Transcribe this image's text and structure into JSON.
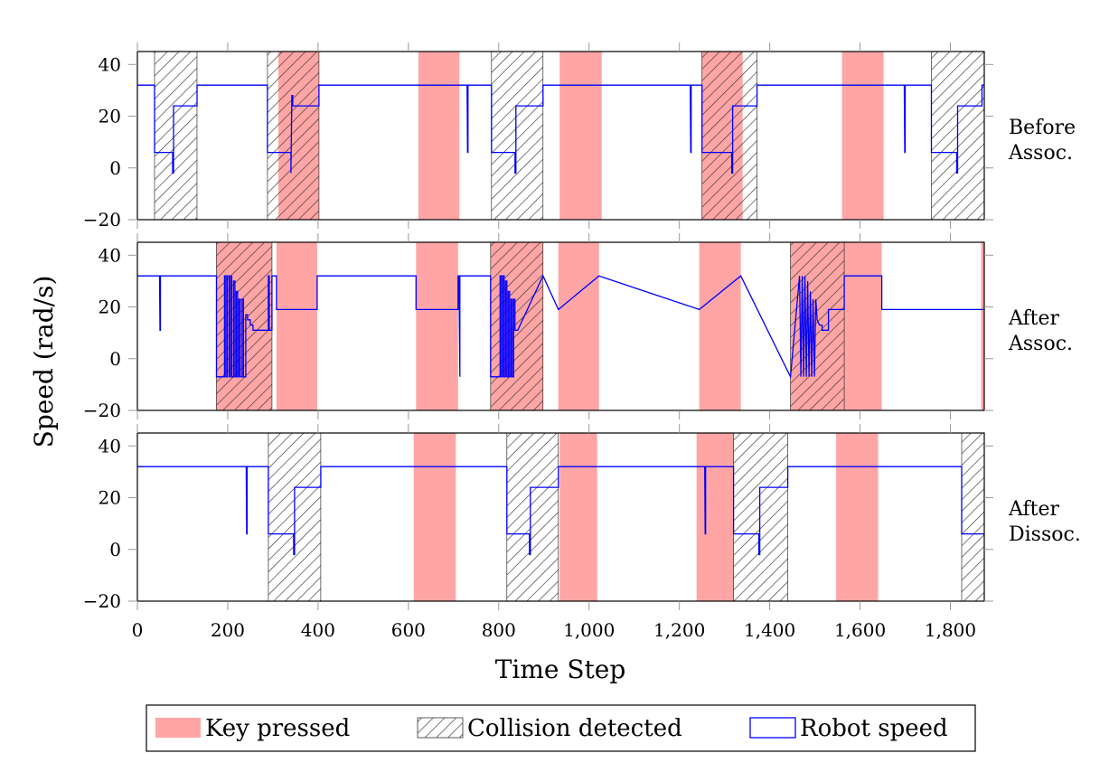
{
  "chart_data": {
    "type": "line",
    "xlabel": "Time Step",
    "ylabel": "Speed (rad/s)",
    "xlim": [
      0,
      1875
    ],
    "ylim": [
      -20,
      45
    ],
    "xticks": [
      0,
      200,
      400,
      600,
      800,
      1000,
      1200,
      1400,
      1600,
      1800
    ],
    "xtick_labels": [
      "0",
      "200",
      "400",
      "600",
      "800",
      "1,000",
      "1,200",
      "1,400",
      "1,600",
      "1,800"
    ],
    "yticks": [
      -20,
      0,
      20,
      40
    ],
    "ytick_labels": [
      "−20",
      "0",
      "20",
      "40"
    ],
    "grid": false,
    "legend_position": "bottom",
    "legend": [
      {
        "label": "Key pressed",
        "kind": "key",
        "color": "#ffa5a5"
      },
      {
        "label": "Collision detected",
        "kind": "collision",
        "color": "#333333"
      },
      {
        "label": "Robot speed",
        "kind": "speed",
        "color": "#0000ff"
      }
    ],
    "panels": [
      {
        "label_lines": [
          "Before",
          "Assoc."
        ],
        "key_pressed": [
          [
            312,
            402
          ],
          [
            622,
            713
          ],
          [
            935,
            1028
          ],
          [
            1250,
            1340
          ],
          [
            1560,
            1652
          ]
        ],
        "collision": [
          [
            38,
            132
          ],
          [
            288,
            402
          ],
          [
            784,
            898
          ],
          [
            1250,
            1372
          ],
          [
            1758,
            1875
          ]
        ],
        "series": [
          {
            "name": "Robot speed",
            "x": [
              0,
              38,
              38,
              78,
              78,
              80,
              80,
              132,
              132,
              288,
              288,
              340,
              340,
              342,
              344,
              344,
              402,
              402,
              730,
              731,
              732,
              732,
              784,
              784,
              836,
              836,
              838,
              838,
              898,
              898,
              1224,
              1225,
              1226,
              1226,
              1250,
              1250,
              1316,
              1316,
              1318,
              1318,
              1372,
              1372,
              1698,
              1699,
              1700,
              1700,
              1758,
              1758,
              1814,
              1814,
              1816,
              1816,
              1870,
              1870,
              1875
            ],
            "y": [
              32,
              32,
              6,
              6,
              -2,
              -2,
              24,
              24,
              32,
              32,
              6,
              6,
              -2,
              28,
              28,
              24,
              24,
              32,
              32,
              6,
              6,
              32,
              32,
              6,
              6,
              -2,
              -2,
              24,
              24,
              32,
              32,
              6,
              6,
              32,
              32,
              6,
              6,
              -2,
              -2,
              24,
              24,
              32,
              32,
              6,
              6,
              32,
              32,
              6,
              6,
              -2,
              -2,
              24,
              24,
              32,
              32
            ]
          }
        ]
      },
      {
        "label_lines": [
          "After",
          "Assoc."
        ],
        "key_pressed": [
          [
            175,
            298
          ],
          [
            308,
            398
          ],
          [
            617,
            710
          ],
          [
            782,
            898
          ],
          [
            932,
            1022
          ],
          [
            1244,
            1336
          ],
          [
            1446,
            1648
          ],
          [
            1868,
            1875
          ]
        ],
        "collision": [
          [
            175,
            298
          ],
          [
            782,
            898
          ],
          [
            1446,
            1565
          ]
        ],
        "series": [
          {
            "name": "Robot speed",
            "x": [
              0,
              49,
              50,
              51,
              51,
              175,
              175,
              193,
              193,
              196,
              196,
              199,
              199,
              203,
              203,
              206,
              206,
              209,
              209,
              213,
              213,
              216,
              216,
              219,
              219,
              222,
              222,
              225,
              225,
              228,
              228,
              232,
              232,
              235,
              235,
              240,
              240,
              244,
              244,
              250,
              250,
              256,
              256,
              290,
              290,
              292,
              292,
              298,
              298,
              308,
              308,
              398,
              398,
              617,
              617,
              710,
              710,
              712,
              714,
              714,
              782,
              782,
              803,
              803,
              806,
              806,
              809,
              809,
              812,
              812,
              815,
              815,
              818,
              818,
              821,
              821,
              824,
              824,
              827,
              827,
              830,
              830,
              833,
              833,
              836,
              836,
              842,
              842,
              898,
              898,
              932,
              932,
              1022,
              1022,
              1244,
              1244,
              1336,
              1336,
              1446,
              1446,
              1466,
              1466,
              1469,
              1469,
              1472,
              1472,
              1475,
              1475,
              1478,
              1478,
              1481,
              1481,
              1484,
              1484,
              1487,
              1487,
              1490,
              1490,
              1493,
              1493,
              1496,
              1496,
              1499,
              1499,
              1502,
              1502,
              1505,
              1505,
              1510,
              1510,
              1516,
              1516,
              1522,
              1522,
              1530,
              1530,
              1565,
              1565,
              1648,
              1648,
              1870,
              1870,
              1875
            ],
            "y": [
              32,
              32,
              11,
              11,
              32,
              32,
              -7,
              -7,
              32,
              32,
              -7,
              -7,
              32,
              32,
              -7,
              -7,
              32,
              32,
              -7,
              -7,
              30,
              30,
              -7,
              -7,
              26,
              26,
              -7,
              -7,
              23,
              23,
              -7,
              -7,
              23,
              23,
              -7,
              -7,
              17,
              17,
              15,
              15,
              13,
              13,
              11,
              11,
              32,
              32,
              11,
              11,
              32,
              32,
              19,
              19,
              32,
              32,
              19,
              19,
              32,
              32,
              -7,
              32,
              32,
              -7,
              -7,
              32,
              32,
              -7,
              -7,
              32,
              32,
              -7,
              -7,
              30,
              30,
              -7,
              -7,
              26,
              26,
              -7,
              -7,
              23,
              23,
              -7,
              -7,
              23,
              23,
              11,
              11,
              11,
              32,
              32,
              19,
              19,
              32,
              32,
              19,
              19,
              32,
              32,
              -7,
              -7,
              32,
              32,
              -7,
              -7,
              32,
              32,
              -7,
              -7,
              32,
              32,
              -7,
              -7,
              30,
              30,
              -7,
              -7,
              26,
              26,
              -7,
              -7,
              23,
              23,
              -7,
              -7,
              23,
              23,
              15,
              15,
              13,
              13,
              13,
              11,
              11,
              11,
              11,
              19,
              19,
              32,
              32,
              19,
              19,
              19,
              19
            ]
          }
        ]
      },
      {
        "label_lines": [
          "After",
          "Dissoc."
        ],
        "key_pressed": [
          [
            612,
            705
          ],
          [
            935,
            1018
          ],
          [
            1238,
            1320
          ],
          [
            1547,
            1640
          ]
        ],
        "collision": [
          [
            290,
            406
          ],
          [
            818,
            932
          ],
          [
            1320,
            1440
          ],
          [
            1825,
            1875
          ]
        ],
        "series": [
          {
            "name": "Robot speed",
            "x": [
              0,
              241,
              242,
              243,
              243,
              290,
              290,
              346,
              346,
              348,
              348,
              406,
              406,
              818,
              818,
              868,
              868,
              870,
              870,
              932,
              932,
              1256,
              1257,
              1258,
              1258,
              1320,
              1320,
              1376,
              1376,
              1378,
              1378,
              1440,
              1440,
              1825,
              1825,
              1875
            ],
            "y": [
              32,
              32,
              6,
              6,
              32,
              32,
              6,
              6,
              -2,
              -2,
              24,
              24,
              32,
              32,
              6,
              6,
              -2,
              -2,
              24,
              24,
              32,
              32,
              6,
              6,
              32,
              32,
              6,
              6,
              -2,
              -2,
              24,
              24,
              32,
              32,
              6,
              6
            ]
          }
        ]
      }
    ]
  }
}
